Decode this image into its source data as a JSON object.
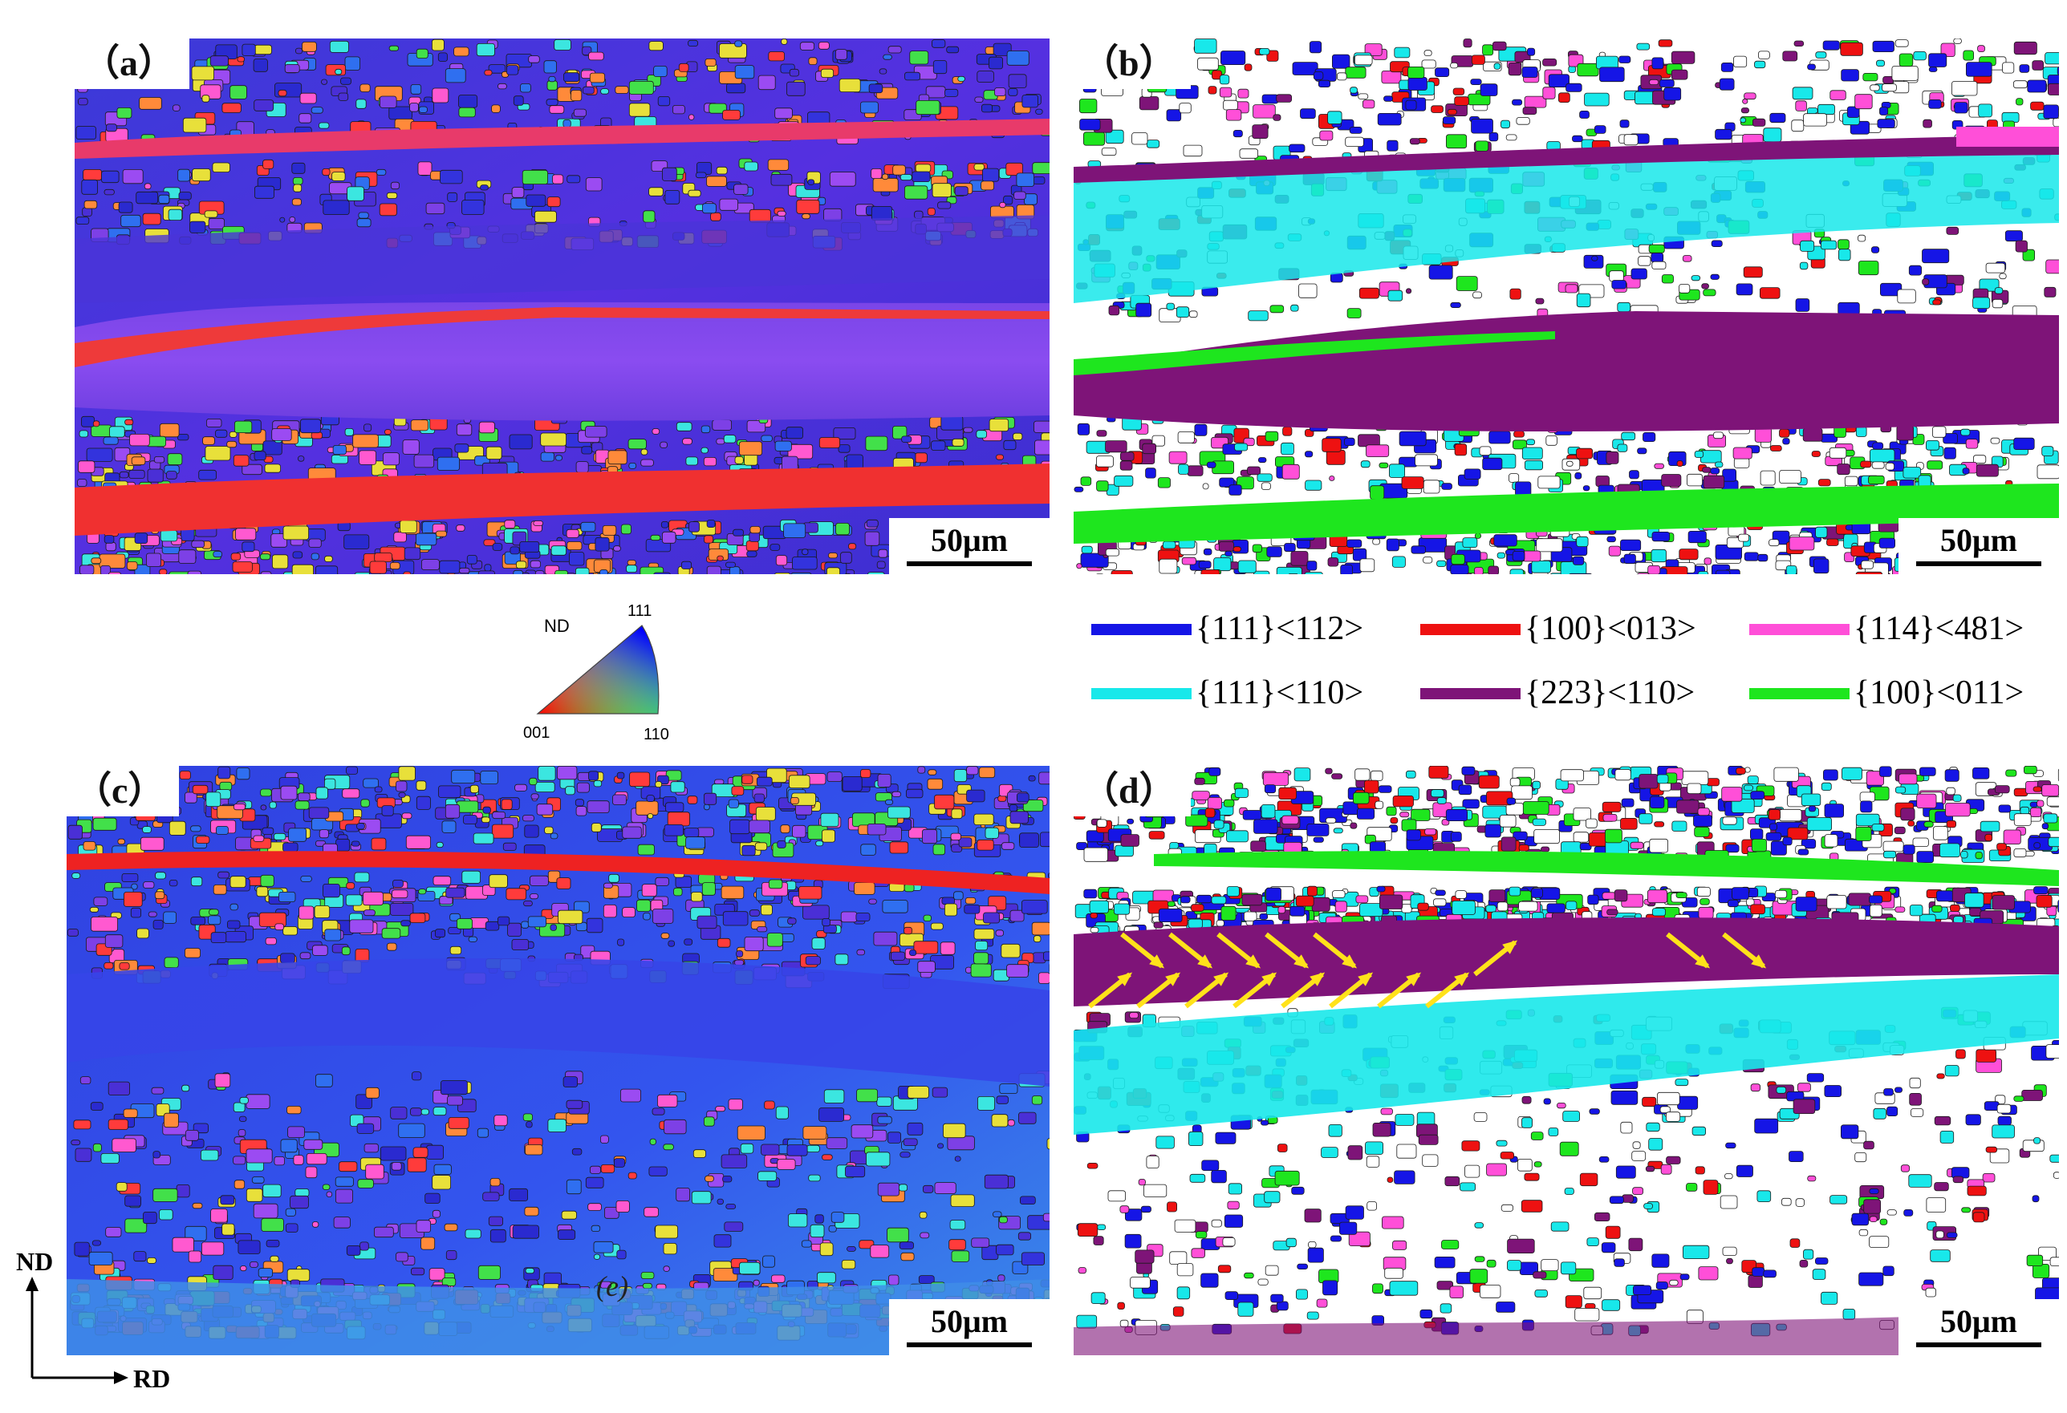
{
  "panels": [
    {
      "id": "a",
      "label": "（a）",
      "scale": "50μm",
      "kind": "ipf"
    },
    {
      "id": "b",
      "label": "（b）",
      "scale": "50μm",
      "kind": "texture"
    },
    {
      "id": "c",
      "label": "（c）",
      "scale": "50μm",
      "kind": "ipf"
    },
    {
      "id": "d",
      "label": "（d）",
      "scale": "50μm",
      "kind": "texture"
    }
  ],
  "ipf_key": {
    "title": "ND",
    "corner_001": "001",
    "corner_101": "110",
    "corner_111": "111"
  },
  "legend": [
    {
      "label": "{111}<112>",
      "color": "#1515e6"
    },
    {
      "label": "{100}<013>",
      "color": "#ee1111"
    },
    {
      "label": "{114}<481>",
      "color": "#ff4fd8"
    },
    {
      "label": "{111}<110>",
      "color": "#18e8ea"
    },
    {
      "label": "{223}<110>",
      "color": "#7e1478"
    },
    {
      "label": "{100}<011>",
      "color": "#1ee61e"
    }
  ],
  "axes": {
    "vertical": "ND",
    "horizontal": "RD"
  },
  "inner_mark_c": "(e)"
}
